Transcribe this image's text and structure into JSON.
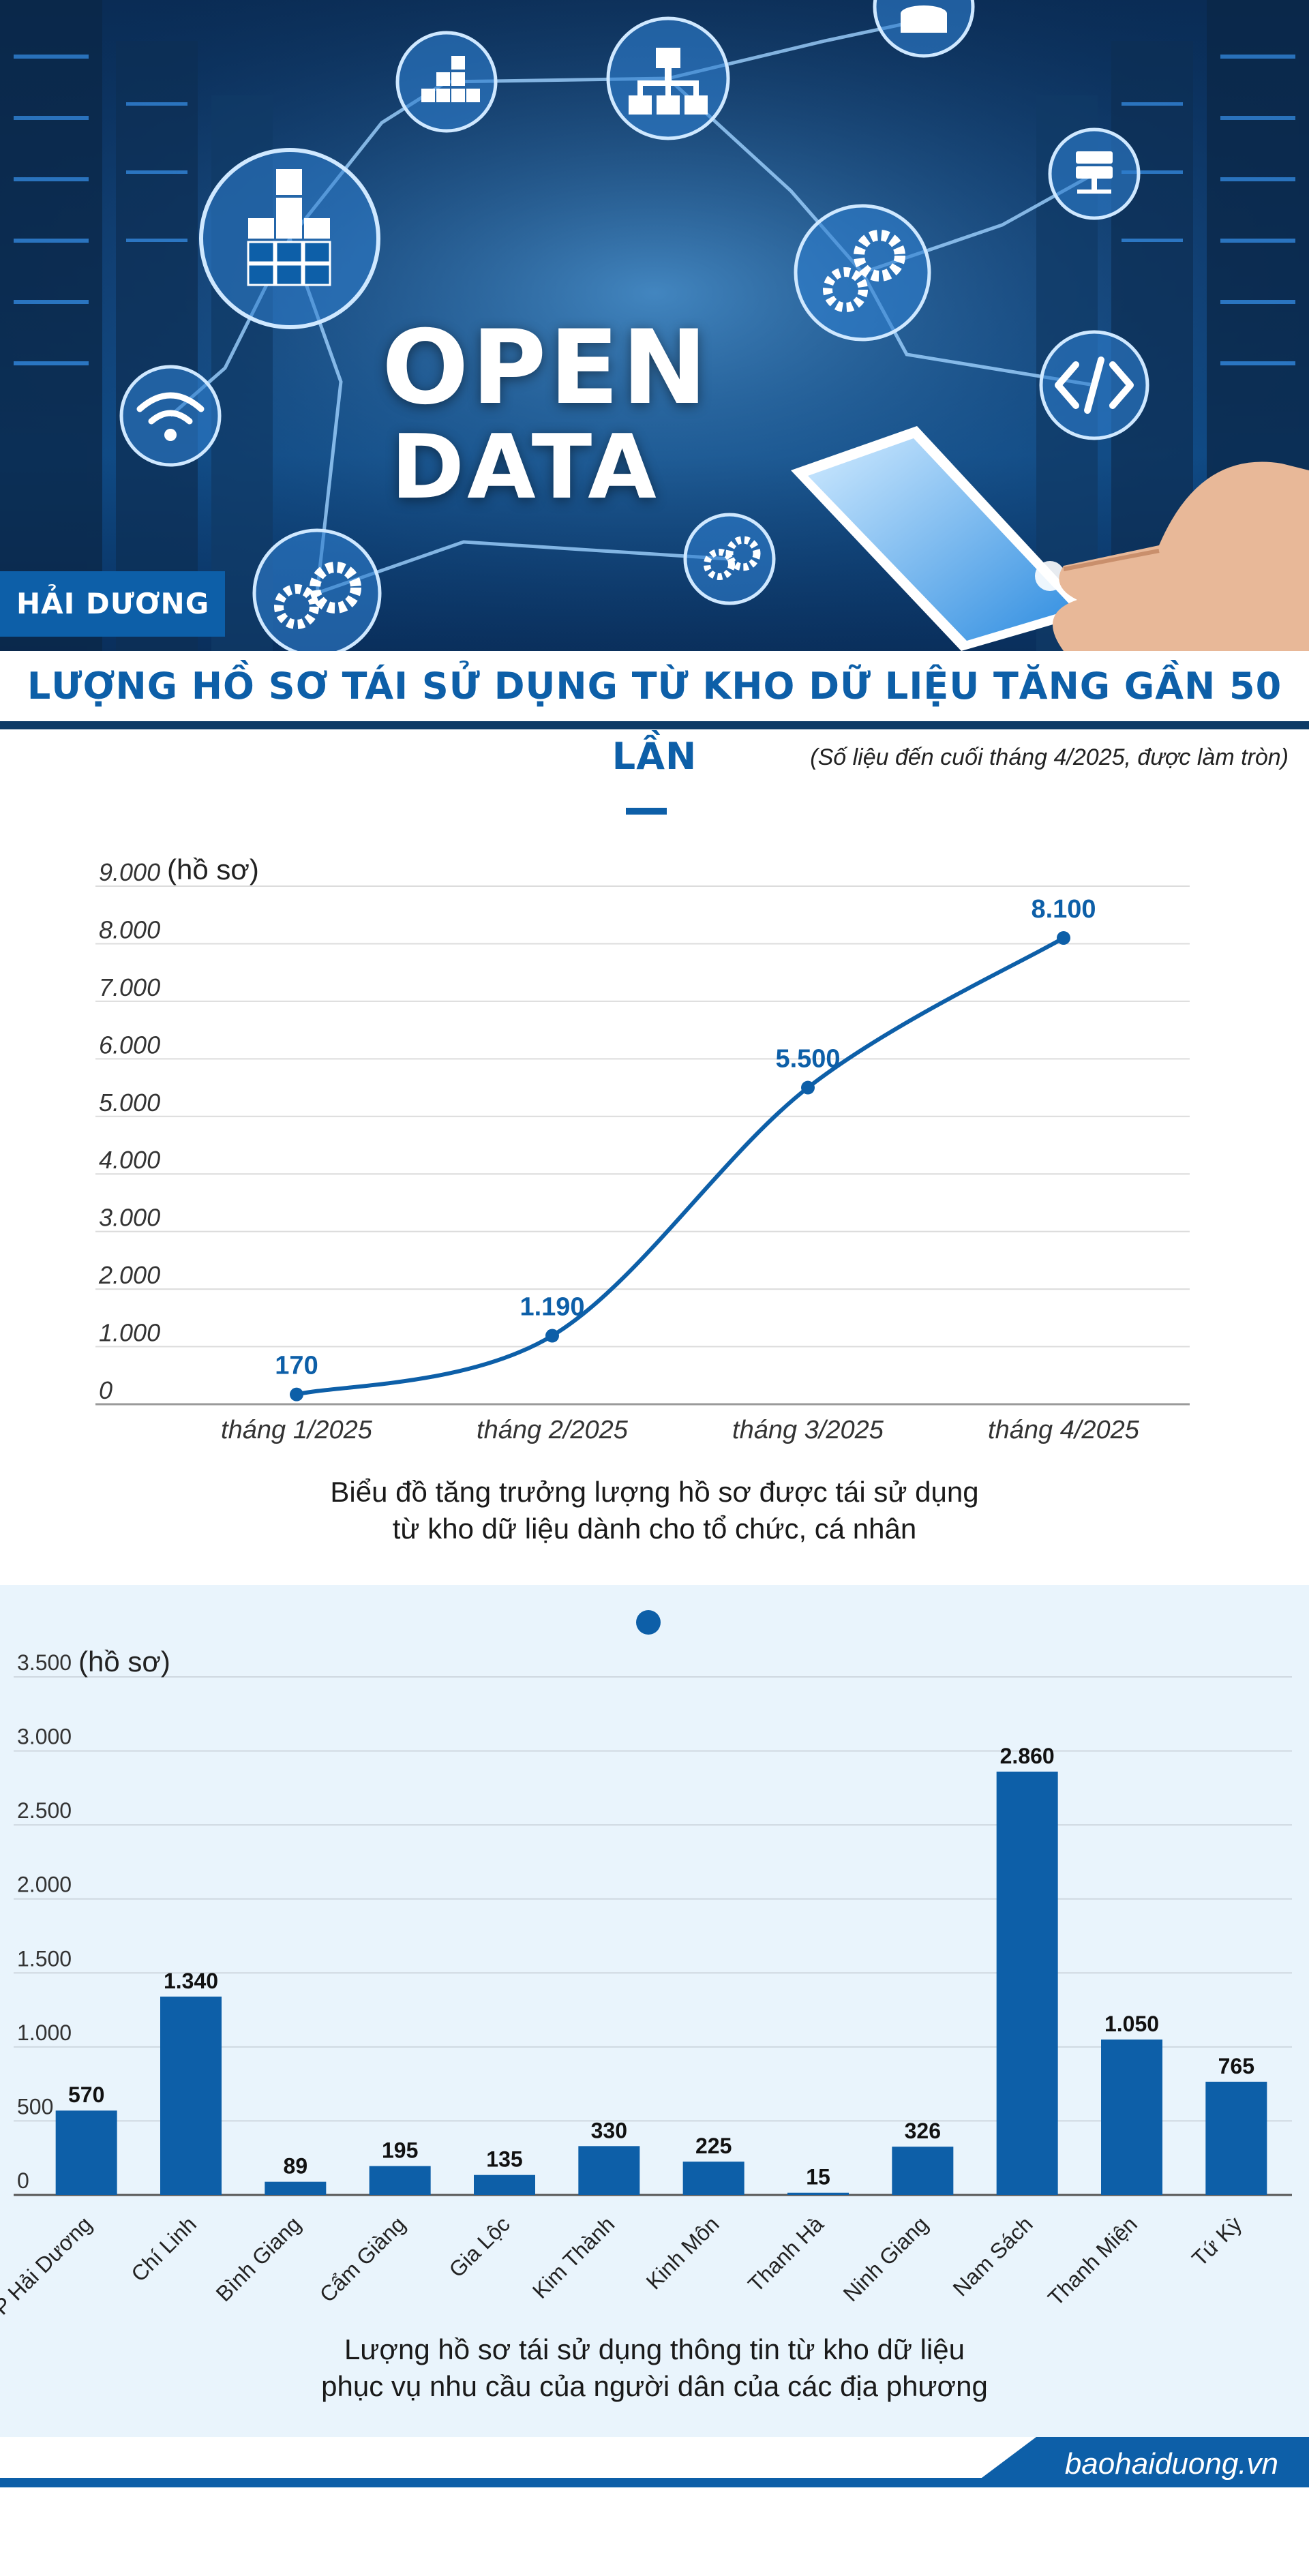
{
  "hero": {
    "word_1": "OPEN",
    "word_2": "DATA",
    "badge": "HẢI DƯƠNG",
    "icons": [
      "bar-chart-icon",
      "hierarchy-icon",
      "database-icon",
      "server-icon",
      "gears-icon",
      "code-icon",
      "wifi-icon",
      "tablet-icon"
    ]
  },
  "header": {
    "title": "LƯỢNG HỒ SƠ TÁI SỬ DỤNG TỪ KHO DỮ LIỆU TĂNG GẦN 50 LẦN",
    "note": "(Số liệu đến cuối tháng 4/2025, được làm tròn)"
  },
  "line_section": {
    "caption_line_1": "Biểu đồ tăng trưởng lượng hồ sơ được tái sử dụng",
    "caption_line_2": "từ kho dữ liệu dành cho tổ chức, cá nhân"
  },
  "bar_section": {
    "caption_line_1": "Lượng hồ sơ tái sử dụng thông tin từ kho dữ liệu",
    "caption_line_2": "phục vụ nhu cầu của người dân của các địa phương"
  },
  "footer": {
    "source": "baohaiduong.vn"
  },
  "colors": {
    "accent": "#0d5fa8",
    "dark_navy": "#0e3a66",
    "bar_bg": "#e9f4fc"
  },
  "chart_data": [
    {
      "type": "line",
      "categories": [
        "tháng 1/2025",
        "tháng 2/2025",
        "tháng 3/2025",
        "tháng 4/2025"
      ],
      "values": [
        170,
        1190,
        5500,
        8100
      ],
      "value_labels": [
        "170",
        "1.190",
        "5.500",
        "8.100"
      ],
      "ylabel": "(hồ sơ)",
      "ylim": [
        0,
        9000
      ],
      "yticks": [
        0,
        1000,
        2000,
        3000,
        4000,
        5000,
        6000,
        7000,
        8000,
        9000
      ],
      "ytick_labels": [
        "0",
        "1.000",
        "2.000",
        "3.000",
        "4.000",
        "5.000",
        "6.000",
        "7.000",
        "8.000",
        "9.000"
      ],
      "grid": true
    },
    {
      "type": "bar",
      "categories": [
        "TP Hải Dương",
        "Chí Linh",
        "Bình Giang",
        "Cẩm Giàng",
        "Gia Lộc",
        "Kim Thành",
        "Kinh Môn",
        "Thanh Hà",
        "Ninh Giang",
        "Nam Sách",
        "Thanh Miện",
        "Tứ Kỳ"
      ],
      "values": [
        570,
        1340,
        89,
        195,
        135,
        330,
        225,
        15,
        326,
        2860,
        1050,
        765
      ],
      "value_labels": [
        "570",
        "1.340",
        "89",
        "195",
        "135",
        "330",
        "225",
        "15",
        "326",
        "2.860",
        "1.050",
        "765"
      ],
      "ylabel": "(hồ sơ)",
      "ylim": [
        0,
        3500
      ],
      "yticks": [
        0,
        500,
        1000,
        1500,
        2000,
        2500,
        3000,
        3500
      ],
      "ytick_labels": [
        "0",
        "500",
        "1.000",
        "1.500",
        "2.000",
        "2.500",
        "3.000",
        "3.500"
      ],
      "grid": true
    }
  ]
}
